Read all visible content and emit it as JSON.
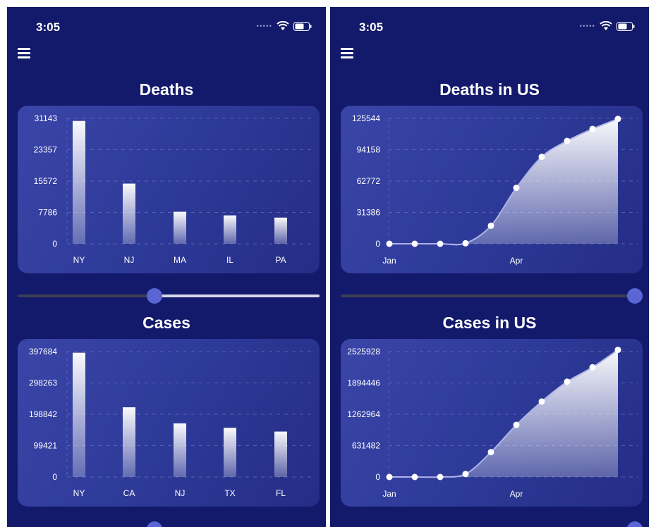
{
  "status": {
    "time": "3:05"
  },
  "colors": {
    "background": "#13196b",
    "card": "#2e3a98",
    "knob": "#5b66d6",
    "text": "#ffffff"
  },
  "left": {
    "slider_top_value": 0.45,
    "slider_bottom_value": 0.45
  },
  "right": {
    "slider_top_value": 1.0,
    "slider_bottom_value": 1.0
  },
  "chart_data": [
    {
      "id": "deaths",
      "type": "bar",
      "title": "Deaths",
      "categories": [
        "NY",
        "NJ",
        "MA",
        "IL",
        "PA"
      ],
      "values": [
        30500,
        14950,
        7950,
        7050,
        6500
      ],
      "ylim": [
        0,
        31143
      ],
      "yticks": [
        "31143",
        "23357",
        "15572",
        "7786",
        "0"
      ],
      "grid": true
    },
    {
      "id": "cases",
      "type": "bar",
      "title": "Cases",
      "categories": [
        "NY",
        "CA",
        "NJ",
        "TX",
        "FL"
      ],
      "values": [
        394000,
        221000,
        170000,
        156000,
        144000
      ],
      "ylim": [
        0,
        397684
      ],
      "yticks": [
        "397684",
        "298263",
        "198842",
        "99421",
        "0"
      ],
      "grid": true
    },
    {
      "id": "deaths-us",
      "type": "area",
      "title": "Deaths in US",
      "xticks": [
        "Jan",
        "Apr"
      ],
      "values": [
        0,
        0,
        0,
        500,
        18000,
        56000,
        87000,
        103000,
        115000,
        125000
      ],
      "ylim": [
        0,
        125544
      ],
      "yticks": [
        "125544",
        "94158",
        "62772",
        "31386",
        "0"
      ],
      "grid": true
    },
    {
      "id": "cases-us",
      "type": "area",
      "title": "Cases in US",
      "xticks": [
        "Jan",
        "Apr"
      ],
      "values": [
        0,
        0,
        0,
        60000,
        500000,
        1050000,
        1520000,
        1920000,
        2210000,
        2560000
      ],
      "ylim": [
        0,
        2525928
      ],
      "yticks": [
        "2525928",
        "1894446",
        "1262964",
        "631482",
        "0"
      ],
      "grid": true
    }
  ]
}
